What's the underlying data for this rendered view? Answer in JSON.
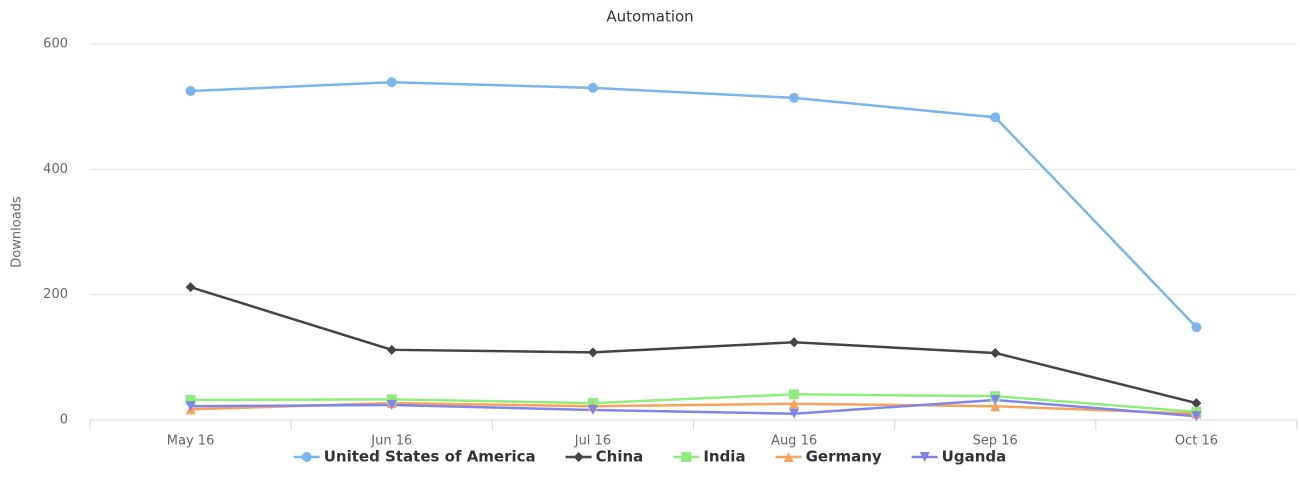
{
  "chart_data": {
    "type": "line",
    "title": "Automation",
    "y_label": "Downloads",
    "categories": [
      "May 16",
      "Jun 16",
      "Jul 16",
      "Aug 16",
      "Sep 16",
      "Oct 16"
    ],
    "series": [
      {
        "name": "United States of America",
        "color": "#7cb5ec",
        "marker": "circle",
        "values": [
          525,
          539,
          530,
          514,
          483,
          148
        ]
      },
      {
        "name": "China",
        "color": "#434348",
        "marker": "diamond",
        "values": [
          212,
          112,
          108,
          124,
          107,
          27
        ]
      },
      {
        "name": "India",
        "color": "#90ed7d",
        "marker": "square",
        "values": [
          32,
          33,
          27,
          41,
          38,
          13
        ]
      },
      {
        "name": "Germany",
        "color": "#f7a35c",
        "marker": "triangle",
        "values": [
          17,
          27,
          22,
          26,
          22,
          10
        ]
      },
      {
        "name": "Uganda",
        "color": "#8085e9",
        "marker": "triangle-down",
        "values": [
          22,
          24,
          16,
          10,
          32,
          6
        ]
      }
    ],
    "ylim": [
      0,
      600
    ],
    "yticks": [
      0,
      200,
      400,
      600
    ],
    "grid": true,
    "legend": "bottom"
  }
}
